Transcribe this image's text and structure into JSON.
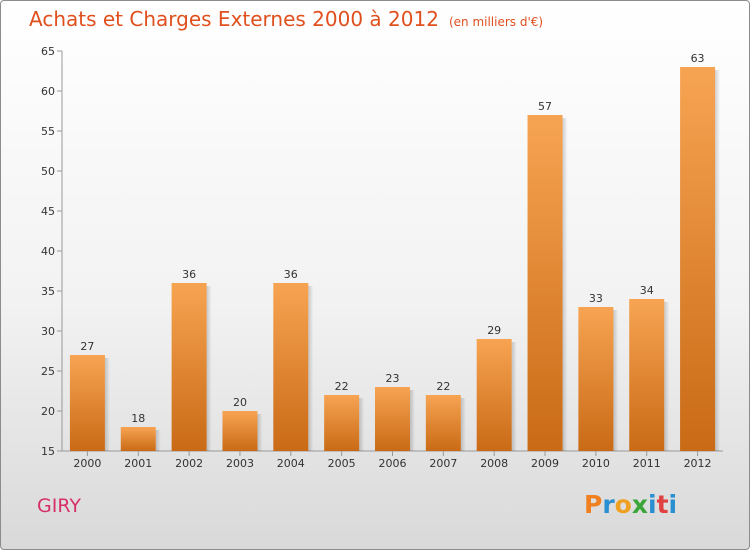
{
  "title": "Achats et Charges Externes 2000 à 2012",
  "subtitle": "(en milliers d'€)",
  "commune": "GIRY",
  "logo": {
    "letters": [
      "P",
      "r",
      "o",
      "x",
      "i",
      "t",
      "i"
    ],
    "colors": [
      "#f08020",
      "#2a8fd0",
      "#f0a020",
      "#3aa63a",
      "#2a8fd0",
      "#e04040",
      "#2a8fd0"
    ]
  },
  "colors": {
    "bar_top": "#f7a452",
    "bar_bottom": "#c96a16",
    "title": "#e0501e"
  },
  "chart_data": {
    "type": "bar",
    "categories": [
      "2000",
      "2001",
      "2002",
      "2003",
      "2004",
      "2005",
      "2006",
      "2007",
      "2008",
      "2009",
      "2010",
      "2011",
      "2012"
    ],
    "values": [
      27,
      18,
      36,
      20,
      36,
      22,
      23,
      22,
      29,
      57,
      33,
      34,
      63
    ],
    "ylim": [
      15,
      65
    ],
    "yticks": [
      15,
      20,
      25,
      30,
      35,
      40,
      45,
      50,
      55,
      60,
      65
    ],
    "grid": false
  }
}
